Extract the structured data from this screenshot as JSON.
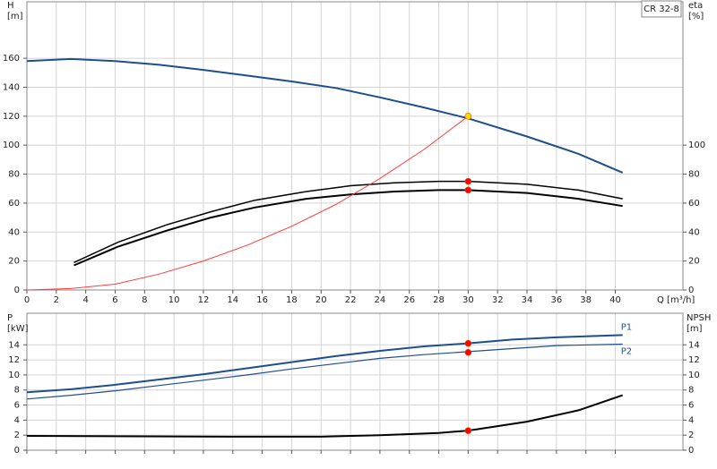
{
  "chart_data": [
    {
      "type": "line",
      "title": "CR 32-8",
      "ylabel": "H",
      "yunit": "[m]",
      "y2label": "eta",
      "y2unit": "[%]",
      "xlabel": "Q [m³/h]",
      "xlim": [
        0,
        44.6
      ],
      "xticks": [
        0,
        2,
        4,
        6,
        8,
        10,
        12,
        14,
        16,
        18,
        20,
        22,
        24,
        26,
        28,
        30,
        32,
        34,
        36,
        38,
        40
      ],
      "ylim": [
        0,
        199
      ],
      "yticks": [
        0,
        20,
        40,
        60,
        80,
        100,
        120,
        140,
        160
      ],
      "y2lim": [
        0,
        199
      ],
      "y2ticks": [
        0,
        20,
        40,
        60,
        80,
        100
      ],
      "grid": true,
      "series": [
        {
          "color": "#1f4e8c",
          "width": 2,
          "x": [
            0,
            3,
            6,
            9,
            12,
            15,
            18,
            21,
            24,
            27,
            30,
            34,
            37.5,
            40.5
          ],
          "values": [
            158,
            159.5,
            158,
            155.5,
            152,
            148,
            144,
            139.5,
            133,
            126,
            118.5,
            106,
            94,
            81
          ]
        },
        {
          "color": "#000000",
          "width": 1.5,
          "x": [
            3.2,
            6.2,
            9.5,
            12.5,
            15.5,
            19,
            22,
            25,
            28,
            30,
            34,
            37.5,
            40.5
          ],
          "values": [
            19,
            33,
            45,
            54,
            62,
            68,
            72,
            74,
            75,
            75,
            73,
            69,
            63
          ]
        },
        {
          "color": "#000000",
          "width": 2,
          "x": [
            3.2,
            6.2,
            9.5,
            12.5,
            15.5,
            19,
            22,
            25,
            28,
            30,
            34,
            37.5,
            40.5
          ],
          "values": [
            17,
            30,
            41,
            50,
            57,
            63,
            66,
            68,
            69,
            69,
            67,
            63,
            58
          ]
        },
        {
          "color": "#ff3b3b",
          "width": 1,
          "x": [
            0,
            3,
            6,
            9,
            12,
            15,
            18,
            21,
            24,
            27,
            30
          ],
          "values": [
            0,
            1,
            4,
            11,
            20,
            31,
            44,
            59,
            77,
            97,
            120
          ]
        },
        {
          "color": "#ffd700",
          "marker": true,
          "x": [
            30
          ],
          "values": [
            120
          ]
        },
        {
          "color": "#ff0000",
          "marker": true,
          "x": [
            30,
            30
          ],
          "values": [
            75,
            69
          ]
        }
      ]
    },
    {
      "type": "line",
      "ylabel": "P",
      "yunit": "[kW]",
      "y2label": "NPSH",
      "y2unit": "[m]",
      "xlim": [
        0,
        44.6
      ],
      "xticks": [
        0,
        2,
        4,
        6,
        8,
        10,
        12,
        14,
        16,
        18,
        20,
        22,
        24,
        26,
        28,
        30,
        32,
        34,
        36,
        38,
        40
      ],
      "ylim": [
        0,
        18.2
      ],
      "yticks": [
        0,
        2,
        4,
        6,
        8,
        10,
        12,
        14
      ],
      "y2lim": [
        0,
        18.2
      ],
      "y2ticks": [
        0,
        2,
        4,
        6,
        8,
        10,
        12,
        14
      ],
      "grid": true,
      "series": [
        {
          "name": "P1",
          "color": "#1f4e8c",
          "width": 2,
          "x": [
            0,
            3,
            6,
            9,
            12,
            15,
            18,
            21,
            24,
            27,
            30,
            33,
            36,
            40.5
          ],
          "values": [
            7.7,
            8.1,
            8.7,
            9.4,
            10.1,
            10.9,
            11.7,
            12.5,
            13.2,
            13.8,
            14.2,
            14.7,
            15.0,
            15.3
          ]
        },
        {
          "name": "P2",
          "color": "#1f4e8c",
          "width": 1.2,
          "x": [
            0,
            3,
            6,
            9,
            12,
            15,
            18,
            21,
            24,
            27,
            30,
            33,
            36,
            40.5
          ],
          "values": [
            6.8,
            7.3,
            7.9,
            8.6,
            9.3,
            10.0,
            10.8,
            11.5,
            12.2,
            12.7,
            13.1,
            13.5,
            13.9,
            14.1
          ]
        },
        {
          "color": "#000000",
          "width": 2,
          "x": [
            0,
            15,
            20,
            24,
            28,
            30,
            34,
            37.5,
            40.5
          ],
          "values": [
            1.9,
            1.8,
            1.8,
            2.0,
            2.3,
            2.6,
            3.8,
            5.3,
            7.3
          ]
        },
        {
          "color": "#ff0000",
          "marker": true,
          "x": [
            30,
            30,
            30
          ],
          "values": [
            14.2,
            13.0,
            2.6
          ]
        }
      ]
    }
  ]
}
